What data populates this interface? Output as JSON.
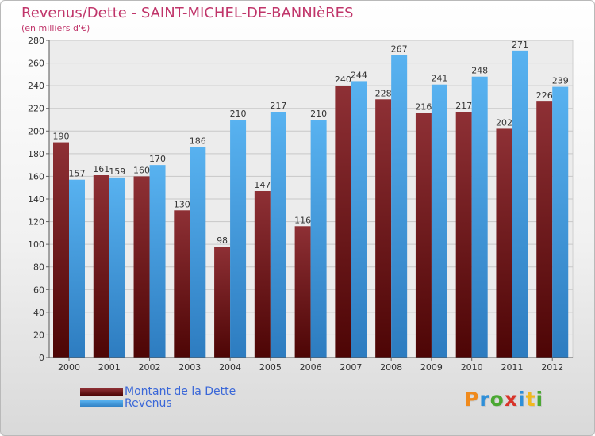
{
  "title": "Revenus/Dette - SAINT-MICHEL-DE-BANNIèRES",
  "subtitle": "(en milliers d'€)",
  "chart_data": {
    "type": "bar",
    "categories": [
      "2000",
      "2001",
      "2002",
      "2003",
      "2004",
      "2005",
      "2006",
      "2007",
      "2008",
      "2009",
      "2010",
      "2011",
      "2012"
    ],
    "series": [
      {
        "name": "Montant de la Dette",
        "values": [
          190,
          161,
          160,
          130,
          98,
          147,
          116,
          240,
          228,
          216,
          217,
          202,
          226
        ],
        "color": "#6e1111"
      },
      {
        "name": "Revenus",
        "values": [
          157,
          159,
          170,
          186,
          210,
          217,
          210,
          244,
          267,
          241,
          248,
          271,
          239
        ],
        "color": "#3f9be0"
      }
    ],
    "ylim": [
      0,
      280
    ],
    "yticks": [
      0,
      20,
      40,
      60,
      80,
      100,
      120,
      140,
      160,
      180,
      200,
      220,
      240,
      260,
      280
    ],
    "grid": true,
    "legend_position": "bottom-left"
  },
  "legend": [
    {
      "label": "Montant de la Dette",
      "color": "#6e1111"
    },
    {
      "label": "Revenus",
      "color": "#3f9be0"
    }
  ],
  "logo": {
    "text": "Proxiti",
    "letters": [
      {
        "ch": "P",
        "color": "#f08a1c"
      },
      {
        "ch": "r",
        "color": "#2f8fd8"
      },
      {
        "ch": "o",
        "color": "#4aa832"
      },
      {
        "ch": "x",
        "color": "#d8342a"
      },
      {
        "ch": "i",
        "color": "#2f8fd8"
      },
      {
        "ch": "t",
        "color": "#f2b81e"
      },
      {
        "ch": "i",
        "color": "#4aa832"
      }
    ]
  }
}
